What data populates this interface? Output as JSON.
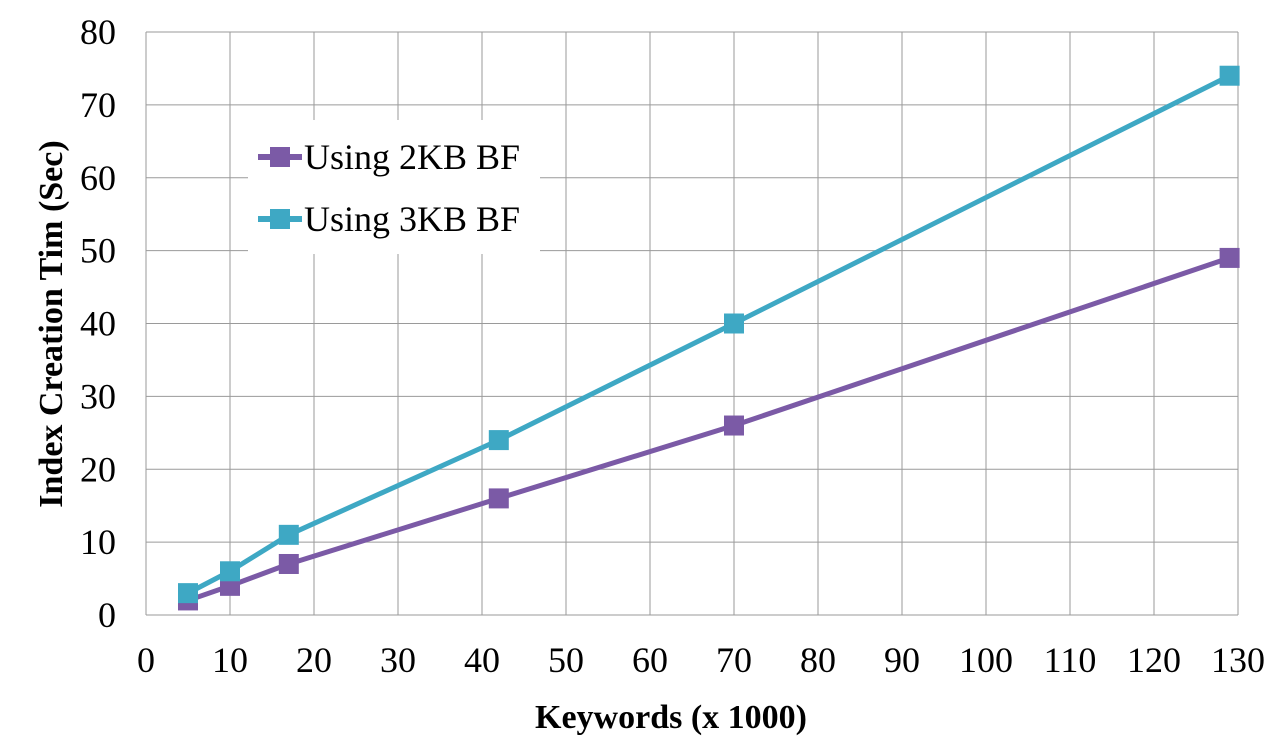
{
  "chart_data": {
    "type": "line",
    "title": "",
    "xlabel": "Keywords (x 1000)",
    "ylabel": "Index Creation Tim (Sec)",
    "xlim": [
      0,
      130
    ],
    "ylim": [
      0,
      80
    ],
    "x_ticks": [
      "0",
      "10",
      "20",
      "30",
      "40",
      "50",
      "60",
      "70",
      "80",
      "90",
      "100",
      "110",
      "120",
      "130"
    ],
    "y_ticks": [
      "0",
      "10",
      "20",
      "30",
      "40",
      "50",
      "60",
      "70",
      "80"
    ],
    "grid": true,
    "legend_position": "top-left",
    "series": [
      {
        "name": "Using 2KB BF",
        "color": "#7b5aa6",
        "marker": "square",
        "x": [
          5,
          10,
          17,
          42,
          70,
          129
        ],
        "y": [
          2,
          4,
          7,
          16,
          26,
          49
        ]
      },
      {
        "name": "Using 3KB BF",
        "color": "#3ea8c4",
        "marker": "square",
        "x": [
          5,
          10,
          17,
          42,
          70,
          129
        ],
        "y": [
          3,
          6,
          11,
          24,
          40,
          74
        ]
      }
    ]
  }
}
